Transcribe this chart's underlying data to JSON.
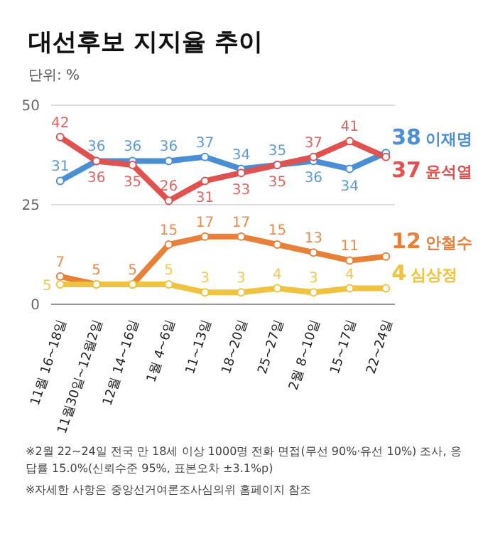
{
  "chart_data": {
    "type": "line",
    "title": "대선후보 지지율 추이",
    "subtitle": "단위: %",
    "categories": [
      "11월 16~18일",
      "11월30일~12월2일",
      "12월 14~16일",
      "1월 4~6일",
      "11~13일",
      "18~20일",
      "25~27일",
      "2월 8~10일",
      "15~17일",
      "22~24일"
    ],
    "series": [
      {
        "name": "이재명",
        "color": "#4a8fd6",
        "values": [
          31,
          36,
          36,
          36,
          37,
          34,
          35,
          36,
          34,
          38
        ],
        "value_labels": [
          "31",
          "36",
          "36",
          "36",
          "37",
          "34",
          "35",
          "36",
          "34",
          "38"
        ]
      },
      {
        "name": "윤석열",
        "color": "#e0524f",
        "values": [
          42,
          36,
          35,
          26,
          31,
          33,
          35,
          37,
          41,
          37
        ],
        "value_labels": [
          "42",
          "36",
          "35",
          "26",
          "31",
          "33",
          "35",
          "37",
          "41",
          "37"
        ]
      },
      {
        "name": "안철수",
        "color": "#e8803a",
        "values": [
          7,
          5,
          5,
          15,
          17,
          17,
          15,
          13,
          11,
          12
        ],
        "value_labels": [
          "7",
          "5",
          "5",
          "15",
          "17",
          "17",
          "15",
          "13",
          "11",
          "12"
        ]
      },
      {
        "name": "심상정",
        "color": "#efc23f",
        "values": [
          5,
          5,
          5,
          5,
          3,
          3,
          4,
          3,
          4,
          4
        ],
        "value_labels": [
          "5",
          null,
          null,
          "5",
          "3",
          "3",
          "4",
          "3",
          "4",
          "4"
        ]
      }
    ],
    "ylim": [
      0,
      50
    ],
    "yticks": [
      0,
      25,
      50
    ],
    "grid": "y",
    "legend": false,
    "marker": "circle",
    "line_style": "solid",
    "annotations": [
      "※2월 22~24일 전국 만 18세 이상 1000명 전화 면접(무선 90%·유선 10%) 조사, 응답률 15.0%(신뢰수준 95%, 표본오차 ±3.1%p)",
      "※자세한 사항은 중앙선거여론조사심의위 홈페이지 참조"
    ]
  }
}
